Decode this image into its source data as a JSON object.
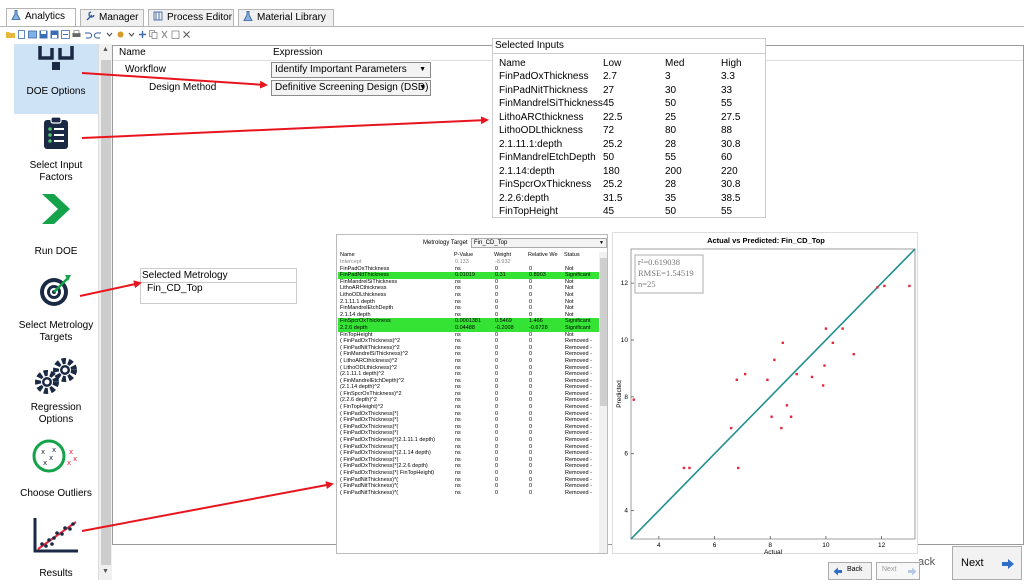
{
  "tabs": [
    {
      "label": "Analytics",
      "icon": "flask-icon",
      "active": true
    },
    {
      "label": "Manager",
      "icon": "wrench-icon",
      "active": false
    },
    {
      "label": "Process Editor",
      "icon": "process-icon",
      "active": false
    },
    {
      "label": "Material Library",
      "icon": "flask-icon",
      "active": false
    }
  ],
  "nav": {
    "items": [
      {
        "label": "DOE Options",
        "icon": "doe-icon"
      },
      {
        "label": "Select Input Factors",
        "icon": "checklist-icon"
      },
      {
        "label": "Run DOE",
        "icon": "play-chevron-icon"
      },
      {
        "label": "Select Metrology Targets",
        "icon": "target-icon"
      },
      {
        "label": "Regression Options",
        "icon": "gears-icon"
      },
      {
        "label": "Choose Outliers",
        "icon": "outliers-icon"
      },
      {
        "label": "Results",
        "icon": "scatter-icon"
      }
    ]
  },
  "grid": {
    "col_name": "Name",
    "col_expression": "Expression",
    "rows": [
      {
        "name": "Workflow",
        "value": "Identify Important Parameters"
      },
      {
        "name": "Design Method",
        "value": "Definitive Screening Design (DSD)"
      }
    ]
  },
  "inputs": {
    "title": "Selected Inputs",
    "headers": [
      "Name",
      "Low",
      "Med",
      "High"
    ],
    "rows": [
      [
        "FinPadOxThickness",
        "2.7",
        "3",
        "3.3"
      ],
      [
        "FinPadNitThickness",
        "27",
        "30",
        "33"
      ],
      [
        "FinMandrelSiThickness",
        "45",
        "50",
        "55"
      ],
      [
        "LithoARCthickness",
        "22.5",
        "25",
        "27.5"
      ],
      [
        "LithoODLthickness",
        "72",
        "80",
        "88"
      ],
      [
        "2.1.11.1:depth",
        "25.2",
        "28",
        "30.8"
      ],
      [
        "FinMandrelEtchDepth",
        "50",
        "55",
        "60"
      ],
      [
        "2.1.14:depth",
        "180",
        "200",
        "220"
      ],
      [
        "FinSpcrOxThickness",
        "25.2",
        "28",
        "30.8"
      ],
      [
        "2.2.6:depth",
        "31.5",
        "35",
        "38.5"
      ],
      [
        "FinTopHeight",
        "45",
        "50",
        "55"
      ]
    ]
  },
  "metrology": {
    "header": "Selected Metrology",
    "value": "Fin_CD_Top"
  },
  "regression": {
    "target_label": "Metrology Target",
    "target_value": "Fin_CD_Top",
    "headers": [
      "Name",
      "P-Value",
      "Weight",
      "Relative We",
      "Status"
    ],
    "rows": [
      {
        "name": "Intercept",
        "p": "0.133",
        "w": "-8.932",
        "rw": "",
        "s": "",
        "sig": false,
        "gray": true
      },
      {
        "name": "FinPadOxThickness",
        "p": "ns",
        "w": "0",
        "rw": "0",
        "s": "Not",
        "sig": false
      },
      {
        "name": "FinPadNitThickness",
        "p": "0.01019",
        "w": "0.31",
        "rw": "0.8903",
        "s": "Significant",
        "sig": true
      },
      {
        "name": "FinMandrelSiThickness",
        "p": "ns",
        "w": "0",
        "rw": "0",
        "s": "Not",
        "sig": false
      },
      {
        "name": "LithoARCthickness",
        "p": "ns",
        "w": "0",
        "rw": "0",
        "s": "Not",
        "sig": false
      },
      {
        "name": "LithoODLthickness",
        "p": "ns",
        "w": "0",
        "rw": "0",
        "s": "Not",
        "sig": false
      },
      {
        "name": "2.1.11.1 depth",
        "p": "ns",
        "w": "0",
        "rw": "0",
        "s": "Not",
        "sig": false
      },
      {
        "name": "FinMandrelEtchDepth",
        "p": "ns",
        "w": "0",
        "rw": "0",
        "s": "Not",
        "sig": false
      },
      {
        "name": "2.1.14 depth",
        "p": "ns",
        "w": "0",
        "rw": "0",
        "s": "Not",
        "sig": false
      },
      {
        "name": "FinSpcrOxThickness",
        "p": "0.0001381",
        "w": "0.5469",
        "rw": "1.466",
        "s": "Significant",
        "sig": true
      },
      {
        "name": "2.2.6 depth",
        "p": "0.04488",
        "w": "-0.2008",
        "rw": "-0.6728",
        "s": "Significant",
        "sig": true
      },
      {
        "name": "FinTopHeight",
        "p": "ns",
        "w": "0",
        "rw": "0",
        "s": "Not",
        "sig": false
      },
      {
        "name": "( FinPadOxThickness)^2",
        "p": "ns",
        "w": "0",
        "rw": "0",
        "s": "Removed -",
        "sig": false
      },
      {
        "name": "( FinPadNitThickness)^2",
        "p": "ns",
        "w": "0",
        "rw": "0",
        "s": "Removed -",
        "sig": false
      },
      {
        "name": "( FinMandrelSiThickness)^2",
        "p": "ns",
        "w": "0",
        "rw": "0",
        "s": "Removed -",
        "sig": false
      },
      {
        "name": "( LithoARCthickness)^2",
        "p": "ns",
        "w": "0",
        "rw": "0",
        "s": "Removed -",
        "sig": false
      },
      {
        "name": "( LithoODLthickness)^2",
        "p": "ns",
        "w": "0",
        "rw": "0",
        "s": "Removed -",
        "sig": false
      },
      {
        "name": "(2.1.11.1 depth)^2",
        "p": "ns",
        "w": "0",
        "rw": "0",
        "s": "Removed -",
        "sig": false
      },
      {
        "name": "( FinMandrelEtchDepth)^2",
        "p": "ns",
        "w": "0",
        "rw": "0",
        "s": "Removed -",
        "sig": false
      },
      {
        "name": "(2.1.14 depth)^2",
        "p": "ns",
        "w": "0",
        "rw": "0",
        "s": "Removed -",
        "sig": false
      },
      {
        "name": "( FinSpcrOxThickness)^2",
        "p": "ns",
        "w": "0",
        "rw": "0",
        "s": "Removed -",
        "sig": false
      },
      {
        "name": "(2.2.6 depth)^2",
        "p": "ns",
        "w": "0",
        "rw": "0",
        "s": "Removed -",
        "sig": false
      },
      {
        "name": "( FinTopHeight)^2",
        "p": "ns",
        "w": "0",
        "rw": "0",
        "s": "Removed -",
        "sig": false
      },
      {
        "name": "( FinPadOxThickness)*(",
        "p": "ns",
        "w": "0",
        "rw": "0",
        "s": "Removed -",
        "sig": false
      },
      {
        "name": "( FinPadOxThickness)*(",
        "p": "ns",
        "w": "0",
        "rw": "0",
        "s": "Removed -",
        "sig": false
      },
      {
        "name": "( FinPadOxThickness)*(",
        "p": "ns",
        "w": "0",
        "rw": "0",
        "s": "Removed -",
        "sig": false
      },
      {
        "name": "( FinPadOxThickness)*(",
        "p": "ns",
        "w": "0",
        "rw": "0",
        "s": "Removed -",
        "sig": false
      },
      {
        "name": "( FinPadOxThickness)*(2.1.11.1 depth)",
        "p": "ns",
        "w": "0",
        "rw": "0",
        "s": "Removed -",
        "sig": false
      },
      {
        "name": "( FinPadOxThickness)*(",
        "p": "ns",
        "w": "0",
        "rw": "0",
        "s": "Removed -",
        "sig": false
      },
      {
        "name": "( FinPadOxThickness)*(2.1.14 depth)",
        "p": "ns",
        "w": "0",
        "rw": "0",
        "s": "Removed -",
        "sig": false
      },
      {
        "name": "( FinPadOxThickness)*(",
        "p": "ns",
        "w": "0",
        "rw": "0",
        "s": "Removed -",
        "sig": false
      },
      {
        "name": "( FinPadOxThickness)*(2.2.6 depth)",
        "p": "ns",
        "w": "0",
        "rw": "0",
        "s": "Removed -",
        "sig": false
      },
      {
        "name": "( FinPadOxThickness)*( FinTopHeight)",
        "p": "ns",
        "w": "0",
        "rw": "0",
        "s": "Removed -",
        "sig": false
      },
      {
        "name": "( FinPadNitThickness)*(",
        "p": "ns",
        "w": "0",
        "rw": "0",
        "s": "Removed -",
        "sig": false
      },
      {
        "name": "( FinPadNitThickness)*(",
        "p": "ns",
        "w": "0",
        "rw": "0",
        "s": "Removed -",
        "sig": false
      },
      {
        "name": "( FinPadNitThickness)*(",
        "p": "ns",
        "w": "0",
        "rw": "0",
        "s": "Removed -",
        "sig": false
      }
    ]
  },
  "chart_data": {
    "type": "scatter",
    "title": "Actual vs Predicted: Fin_CD_Top",
    "xlabel": "Actual",
    "ylabel": "Predicted",
    "xlim": [
      3,
      13.2
    ],
    "ylim": [
      3,
      13.2
    ],
    "xticks": [
      4,
      6,
      8,
      10,
      12
    ],
    "yticks": [
      4,
      6,
      8,
      10,
      12
    ],
    "stats": [
      "r²=0.619038",
      "RMSE=1.54519",
      "n=25"
    ],
    "fit_line": [
      [
        3,
        3
      ],
      [
        13.2,
        13.2
      ]
    ],
    "points": [
      {
        "x": 3.1,
        "y": 7.9
      },
      {
        "x": 4.9,
        "y": 5.5
      },
      {
        "x": 5.1,
        "y": 5.5
      },
      {
        "x": 6.6,
        "y": 6.9
      },
      {
        "x": 6.8,
        "y": 8.6
      },
      {
        "x": 6.85,
        "y": 5.5
      },
      {
        "x": 7.1,
        "y": 8.8
      },
      {
        "x": 7.9,
        "y": 8.6
      },
      {
        "x": 8.05,
        "y": 7.3
      },
      {
        "x": 8.15,
        "y": 9.3
      },
      {
        "x": 8.4,
        "y": 6.9
      },
      {
        "x": 8.45,
        "y": 9.9
      },
      {
        "x": 8.6,
        "y": 7.7
      },
      {
        "x": 8.75,
        "y": 7.3
      },
      {
        "x": 8.95,
        "y": 8.8
      },
      {
        "x": 9.5,
        "y": 8.7
      },
      {
        "x": 9.9,
        "y": 8.4
      },
      {
        "x": 9.95,
        "y": 9.1
      },
      {
        "x": 10.0,
        "y": 10.4
      },
      {
        "x": 10.25,
        "y": 9.9
      },
      {
        "x": 10.6,
        "y": 10.4
      },
      {
        "x": 11.0,
        "y": 9.5
      },
      {
        "x": 12.1,
        "y": 11.9
      },
      {
        "x": 13.0,
        "y": 11.9
      },
      {
        "x": 11.85,
        "y": 11.85
      }
    ],
    "color_points": "#e5283c",
    "color_line": "#1f8f8f"
  },
  "buttons": {
    "back_partial": "ack",
    "next_main": "Next",
    "back_small": "Back",
    "next_small": "Next"
  },
  "colors": {
    "significant": "#35e335",
    "annotation_arrow": "#e8141e",
    "nav_selected": "#cfe3f7",
    "icon_dark": "#1a2a44",
    "icon_green": "#14a34a"
  }
}
